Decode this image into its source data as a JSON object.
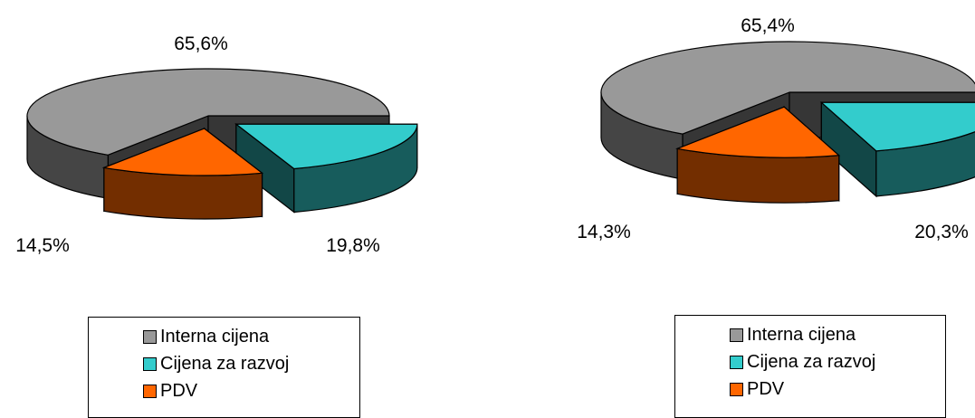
{
  "chart_data": [
    {
      "type": "pie",
      "title": "",
      "categories": [
        "Interna cijena",
        "Cijena za razvoj",
        "PDV"
      ],
      "values": [
        65.6,
        19.8,
        14.5
      ],
      "data_labels": [
        "65,6%",
        "19,8%",
        "14,5%"
      ],
      "colors": [
        "#999999",
        "#33cccc",
        "#ff6600"
      ],
      "legend": {
        "placement": "bottom",
        "entries": [
          "Interna cijena",
          "Cijena za razvoj",
          "PDV"
        ]
      }
    },
    {
      "type": "pie",
      "title": "",
      "categories": [
        "Interna cijena",
        "Cijena za razvoj",
        "PDV"
      ],
      "values": [
        65.4,
        20.3,
        14.3
      ],
      "data_labels": [
        "65,4%",
        "20,3%",
        "14,3%"
      ],
      "colors": [
        "#999999",
        "#33cccc",
        "#ff6600"
      ],
      "legend": {
        "placement": "bottom",
        "entries": [
          "Interna cijena",
          "Cijena za razvoj",
          "PDV"
        ]
      }
    }
  ]
}
